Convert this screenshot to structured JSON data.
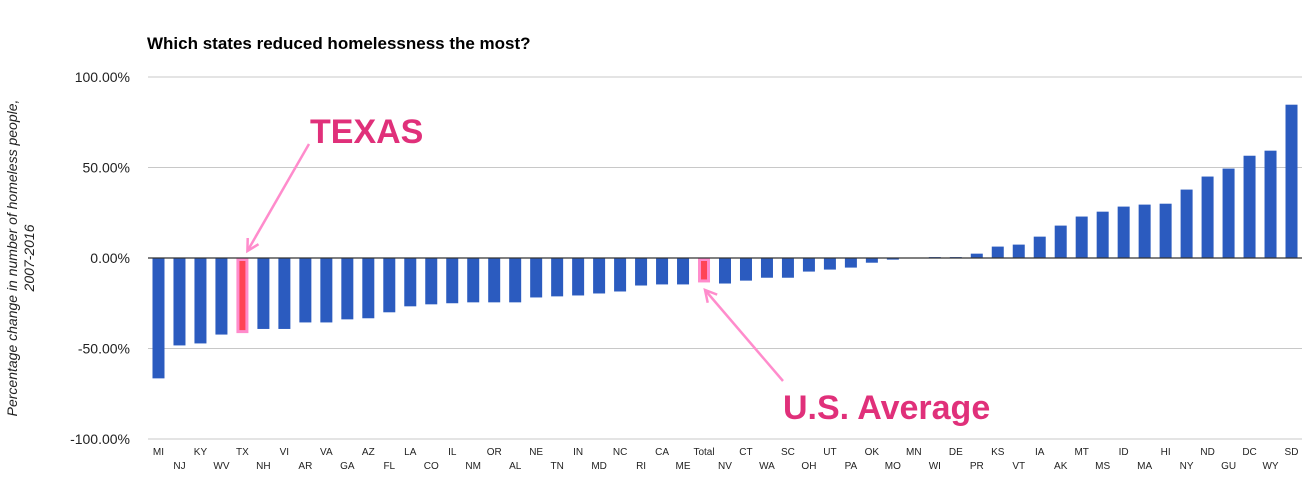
{
  "chart_data": {
    "type": "bar",
    "title": "Which states reduced homelessness the most?",
    "xlabel": "",
    "ylabel": [
      "Percentage change in number of homeless people,",
      "2007-2016"
    ],
    "ylim": [
      -100,
      100
    ],
    "yticks": [
      100,
      50,
      0,
      -50,
      -100
    ],
    "ytick_labels": [
      "100.00%",
      "50.00%",
      "0.00%",
      "-50.00%",
      "-100.00%"
    ],
    "grid": true,
    "categories": [
      "MI",
      "NJ",
      "KY",
      "WV",
      "TX",
      "NH",
      "VI",
      "AR",
      "VA",
      "GA",
      "AZ",
      "FL",
      "LA",
      "CO",
      "IL",
      "NM",
      "OR",
      "AL",
      "NE",
      "TN",
      "IN",
      "MD",
      "NC",
      "RI",
      "CA",
      "ME",
      "Total",
      "NV",
      "CT",
      "WA",
      "SC",
      "OH",
      "UT",
      "PA",
      "OK",
      "MO",
      "MN",
      "WI",
      "DE",
      "PR",
      "KS",
      "VT",
      "IA",
      "AK",
      "MT",
      "MS",
      "ID",
      "MA",
      "HI",
      "NY",
      "ND",
      "GU",
      "DC",
      "WY",
      "SD"
    ],
    "values": [
      -66.5,
      -48.3,
      -47.2,
      -42.3,
      -41.5,
      -39.2,
      -39.2,
      -35.6,
      -35.6,
      -33.9,
      -33.3,
      -30.0,
      -26.7,
      -25.6,
      -25.0,
      -24.5,
      -24.5,
      -24.5,
      -21.8,
      -21.2,
      -20.7,
      -19.6,
      -18.5,
      -15.2,
      -14.6,
      -14.6,
      -13.5,
      -14.1,
      -12.5,
      -10.9,
      -10.9,
      -7.5,
      -6.4,
      -5.3,
      -2.6,
      -0.9,
      0.0,
      0.5,
      0.5,
      2.4,
      6.3,
      7.4,
      11.8,
      17.9,
      22.9,
      25.6,
      28.4,
      29.5,
      30.0,
      37.8,
      45.0,
      49.4,
      56.5,
      59.3,
      84.7
    ],
    "highlighted": [
      "TX",
      "Total"
    ],
    "annotations": [
      {
        "text": "TEXAS",
        "target": "TX"
      },
      {
        "text": "U.S. Average",
        "target": "Total"
      }
    ],
    "colors": {
      "bar": "#2b5bbf",
      "highlight_fill": "#ff4455",
      "highlight_border": "#ff8ccc",
      "annotation_text": "#e0307a",
      "arrow": "#ff8ccc",
      "grid": "#c8c8c8",
      "zero_line": "#333333"
    }
  }
}
